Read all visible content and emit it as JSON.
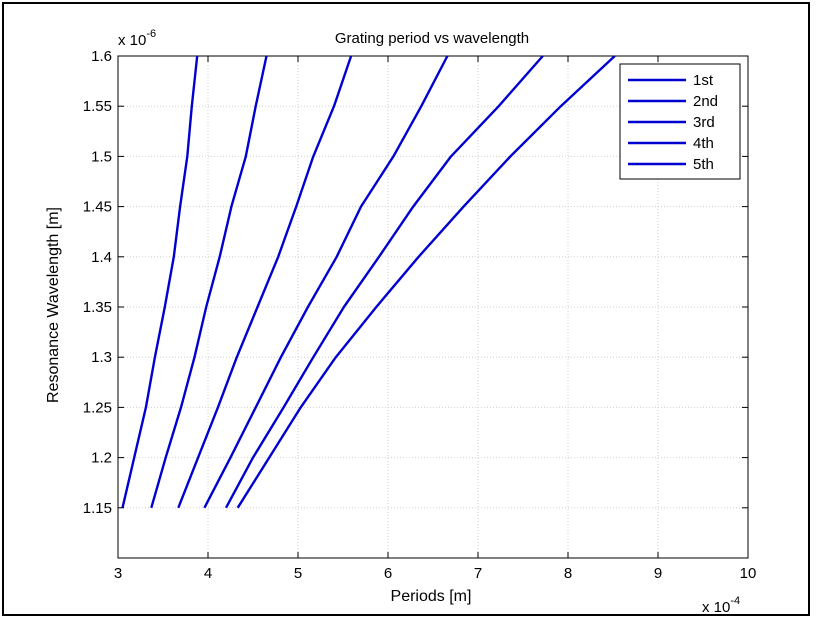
{
  "chart_data": {
    "type": "line",
    "title": "Grating period vs wavelength",
    "xlabel": "Periods [m]",
    "ylabel": "Resonance Wavelength [m]",
    "x_multiplier": {
      "base": "x 10",
      "exp": "-4"
    },
    "y_multiplier": {
      "base": "x 10",
      "exp": "-6"
    },
    "xlim": [
      3,
      10
    ],
    "ylim": [
      1.1,
      1.6
    ],
    "x_ticks": [
      "3",
      "4",
      "5",
      "6",
      "7",
      "8",
      "9",
      "10"
    ],
    "y_ticks": [
      "1.15",
      "1.2",
      "1.25",
      "1.3",
      "1.35",
      "1.4",
      "1.45",
      "1.5",
      "1.55",
      "1.6"
    ],
    "grid": true,
    "legend_position": "top-right",
    "line_color": "#0000d0",
    "series": [
      {
        "name": "1st",
        "points": [
          [
            3.05,
            1.15
          ],
          [
            3.18,
            1.2
          ],
          [
            3.31,
            1.25
          ],
          [
            3.41,
            1.3
          ],
          [
            3.52,
            1.35
          ],
          [
            3.62,
            1.4
          ],
          [
            3.69,
            1.45
          ],
          [
            3.77,
            1.5
          ],
          [
            3.82,
            1.55
          ],
          [
            3.88,
            1.6
          ]
        ]
      },
      {
        "name": "2nd",
        "points": [
          [
            3.37,
            1.15
          ],
          [
            3.53,
            1.2
          ],
          [
            3.7,
            1.25
          ],
          [
            3.85,
            1.3
          ],
          [
            3.98,
            1.35
          ],
          [
            4.13,
            1.4
          ],
          [
            4.26,
            1.45
          ],
          [
            4.42,
            1.5
          ],
          [
            4.53,
            1.55
          ],
          [
            4.65,
            1.6
          ]
        ]
      },
      {
        "name": "3rd",
        "points": [
          [
            3.67,
            1.15
          ],
          [
            3.89,
            1.2
          ],
          [
            4.11,
            1.25
          ],
          [
            4.32,
            1.3
          ],
          [
            4.55,
            1.35
          ],
          [
            4.78,
            1.4
          ],
          [
            4.98,
            1.45
          ],
          [
            5.17,
            1.5
          ],
          [
            5.4,
            1.55
          ],
          [
            5.59,
            1.6
          ]
        ]
      },
      {
        "name": "4th",
        "points": [
          [
            3.96,
            1.15
          ],
          [
            4.25,
            1.2
          ],
          [
            4.53,
            1.25
          ],
          [
            4.81,
            1.3
          ],
          [
            5.11,
            1.35
          ],
          [
            5.43,
            1.4
          ],
          [
            5.7,
            1.45
          ],
          [
            6.06,
            1.5
          ],
          [
            6.37,
            1.55
          ],
          [
            6.66,
            1.6
          ]
        ]
      },
      {
        "name": "5th",
        "points": [
          [
            4.2,
            1.15
          ],
          [
            4.5,
            1.2
          ],
          [
            4.84,
            1.25
          ],
          [
            5.17,
            1.3
          ],
          [
            5.51,
            1.35
          ],
          [
            5.9,
            1.4
          ],
          [
            6.28,
            1.45
          ],
          [
            6.7,
            1.5
          ],
          [
            7.23,
            1.55
          ],
          [
            7.72,
            1.6
          ]
        ]
      },
      {
        "name": "",
        "points": [
          [
            4.33,
            1.15
          ],
          [
            4.68,
            1.2
          ],
          [
            5.03,
            1.25
          ],
          [
            5.42,
            1.3
          ],
          [
            5.87,
            1.35
          ],
          [
            6.34,
            1.4
          ],
          [
            6.84,
            1.45
          ],
          [
            7.36,
            1.5
          ],
          [
            7.92,
            1.55
          ],
          [
            8.52,
            1.6
          ]
        ]
      }
    ]
  }
}
